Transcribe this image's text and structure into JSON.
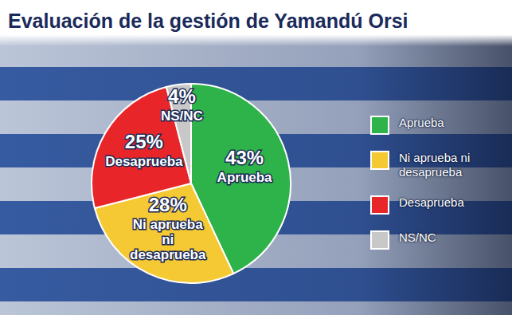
{
  "chart_data": {
    "type": "pie",
    "title": "Evaluación de la gestión de Yamandú Orsi",
    "categories": [
      "Aprueba",
      "Ni aprueba ni desaprueba",
      "Desaprueba",
      "NS/NC"
    ],
    "values": [
      43,
      28,
      25,
      4
    ],
    "value_labels": [
      "43%",
      "28%",
      "25%",
      "4%"
    ],
    "colors": [
      "#2db34a",
      "#f5c933",
      "#e8262a",
      "#c8c8c8"
    ],
    "data_labels": true,
    "legend": "right"
  }
}
